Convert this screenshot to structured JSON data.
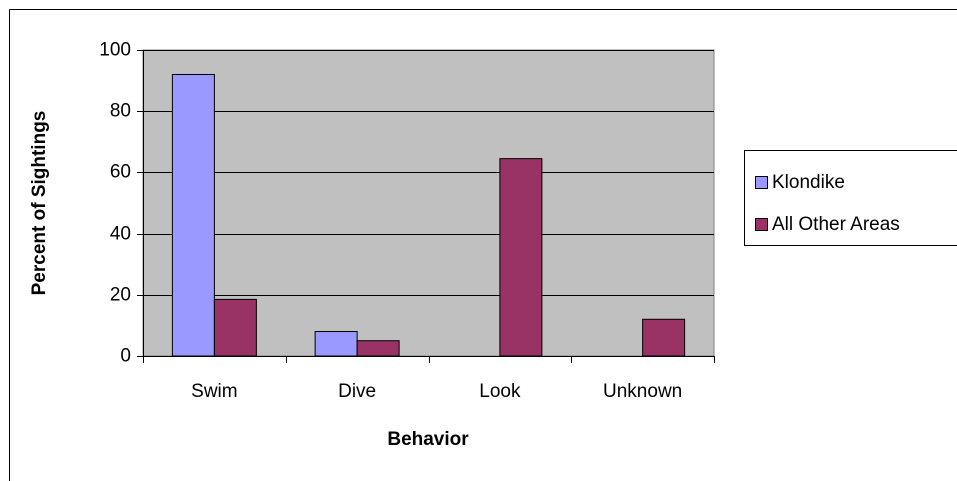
{
  "chart_data": {
    "type": "bar",
    "x_label": "Behavior",
    "y_label": "Percent of Sightings",
    "categories": [
      "Swim",
      "Dive",
      "Look",
      "Unknown"
    ],
    "series": [
      {
        "name": "Klondike",
        "color": "#9999ff",
        "values": [
          92,
          8,
          0,
          0
        ]
      },
      {
        "name": "All Other Areas",
        "color": "#993366",
        "values": [
          18.5,
          5,
          64.5,
          12
        ]
      }
    ],
    "ylim": [
      0,
      100
    ],
    "yticks": [
      0,
      20,
      40,
      60,
      80,
      100
    ],
    "grid": true,
    "plot_background": "#c0c0c0",
    "legend": "right"
  }
}
